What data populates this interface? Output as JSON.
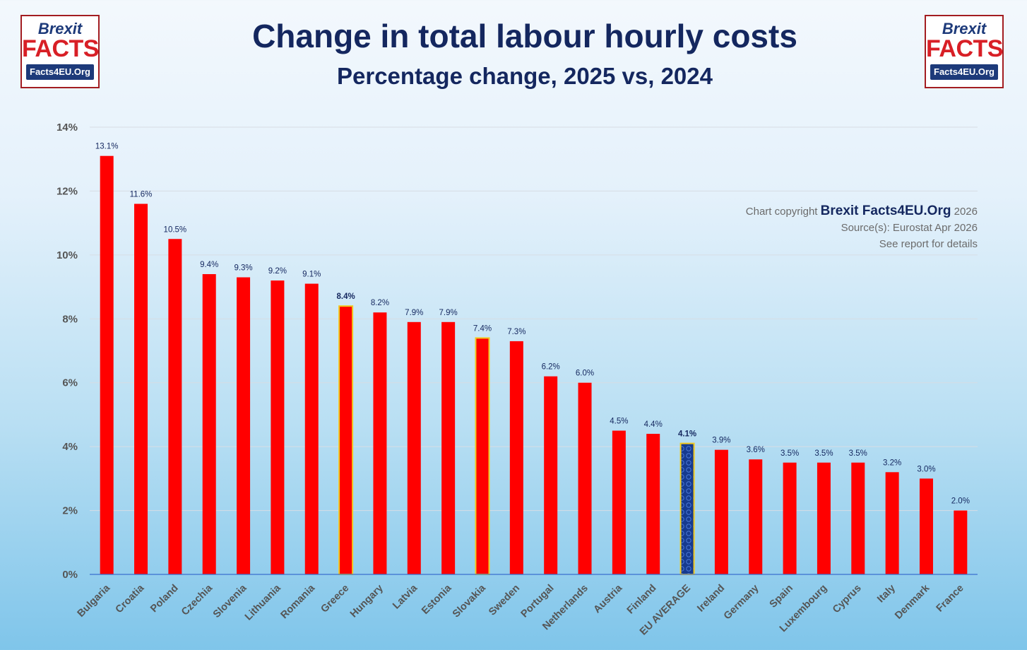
{
  "logo": {
    "brexit": "Brexit",
    "facts": "FACTS",
    "tagline": "Facts4EU.Org"
  },
  "credits": {
    "copyright_prefix": "Chart copyright",
    "brand": "Brexit Facts4EU.Org",
    "year": "2026",
    "source": "Source(s): Eurostat  Apr 2026",
    "details": "See report for details"
  },
  "colors": {
    "bar": "#ff0000",
    "highlight_outline": "#f2c81e",
    "eu_average": "#163a8f",
    "title": "#14275f"
  },
  "chart_data": {
    "type": "bar",
    "title": "Change in total labour hourly costs",
    "subtitle": "Percentage change, 2025 vs, 2024",
    "xlabel": "",
    "ylabel": "",
    "ylim": [
      0,
      14
    ],
    "yticks": [
      0,
      2,
      4,
      6,
      8,
      10,
      12,
      14
    ],
    "ytick_labels": [
      "0%",
      "2%",
      "4%",
      "6%",
      "8%",
      "10%",
      "12%",
      "14%"
    ],
    "grid": true,
    "categories": [
      "Bulgaria",
      "Croatia",
      "Poland",
      "Czechia",
      "Slovenia",
      "Lithuania",
      "Romania",
      "Greece",
      "Hungary",
      "Latvia",
      "Estonia",
      "Slovakia",
      "Sweden",
      "Portugal",
      "Netherlands",
      "Austria",
      "Finland",
      "EU AVERAGE",
      "Ireland",
      "Germany",
      "Spain",
      "Luxembourg",
      "Cyprus",
      "Italy",
      "Denmark",
      "France"
    ],
    "values": [
      13.1,
      11.6,
      10.5,
      9.4,
      9.3,
      9.2,
      9.1,
      8.4,
      8.2,
      7.9,
      7.9,
      7.4,
      7.3,
      6.2,
      6.0,
      4.5,
      4.4,
      4.1,
      3.9,
      3.6,
      3.5,
      3.5,
      3.5,
      3.2,
      3.0,
      2.0
    ],
    "value_labels": [
      "13.1%",
      "11.6%",
      "10.5%",
      "9.4%",
      "9.3%",
      "9.2%",
      "9.1%",
      "8.4%",
      "8.2%",
      "7.9%",
      "7.9%",
      "7.4%",
      "7.3%",
      "6.2%",
      "6.0%",
      "4.5%",
      "4.4%",
      "4.1%",
      "3.9%",
      "3.6%",
      "3.5%",
      "3.5%",
      "3.5%",
      "3.2%",
      "3.0%",
      "2.0%"
    ],
    "highlighted": [
      "Greece",
      "Slovakia"
    ],
    "average_category": "EU AVERAGE"
  }
}
